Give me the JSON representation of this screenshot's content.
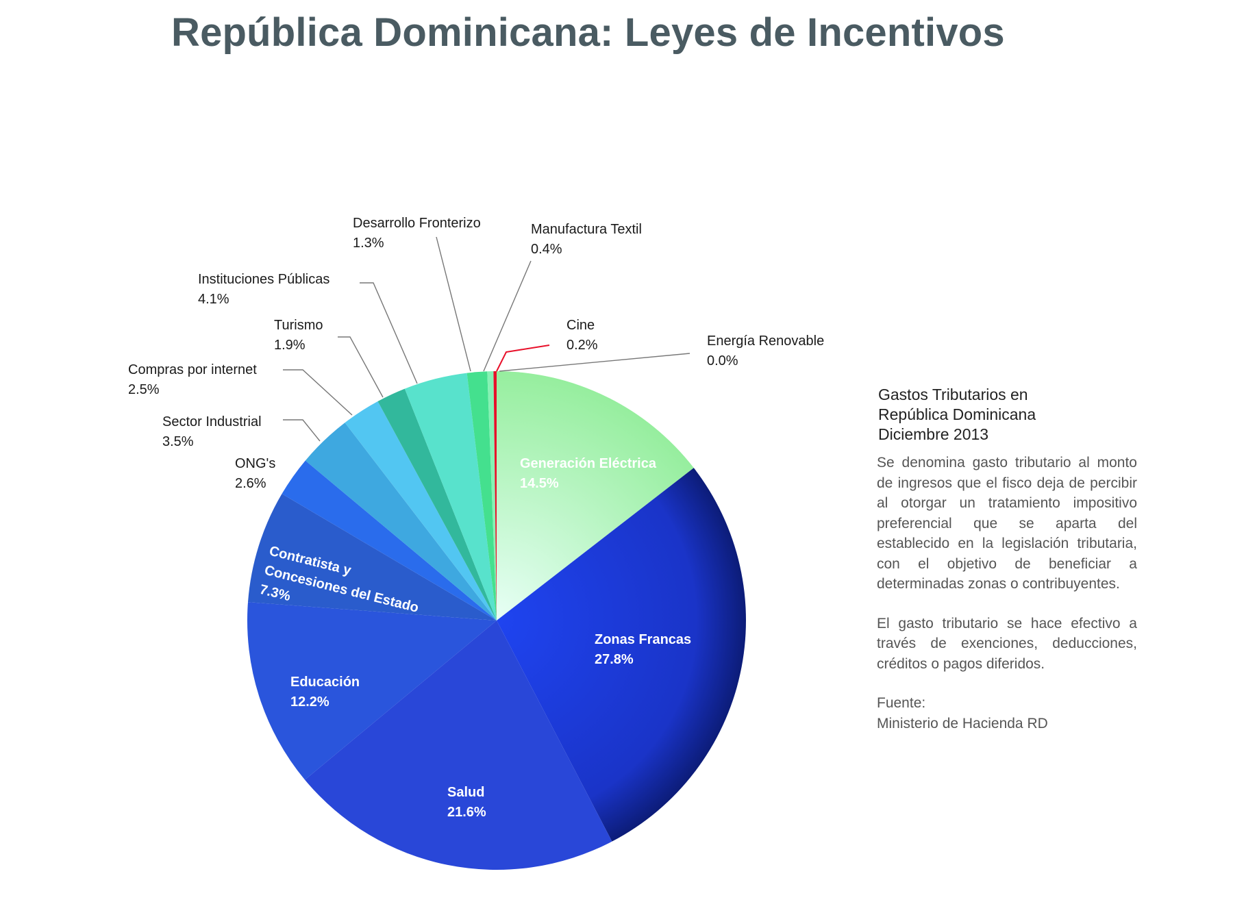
{
  "chart_data": {
    "type": "pie",
    "title": "República Dominicana: Leyes de Incentivos",
    "unit": "%",
    "slices": [
      {
        "name": "Energía Renovable",
        "value": 0.0,
        "label": "0.0%",
        "color": "#9ef0c0"
      },
      {
        "name": "Generación Eléctrica",
        "value": 14.5,
        "label": "14.5%",
        "color": "#a8f2b8"
      },
      {
        "name": "Zonas Francas",
        "value": 27.8,
        "label": "27.8%",
        "color": "#1c3ae6"
      },
      {
        "name": "Salud",
        "value": 21.6,
        "label": "21.6%",
        "color": "#2947d8"
      },
      {
        "name": "Educación",
        "value": 12.2,
        "label": "12.2%",
        "color": "#2a55dc"
      },
      {
        "name": "Contratista y Concesiones del Estado",
        "value": 7.3,
        "label": "7.3%",
        "color": "#2a5ccc"
      },
      {
        "name": "ONG's",
        "value": 2.6,
        "label": "2.6%",
        "color": "#2a6cec"
      },
      {
        "name": "Sector Industrial",
        "value": 3.5,
        "label": "3.5%",
        "color": "#3ea8e0"
      },
      {
        "name": "Compras por internet",
        "value": 2.5,
        "label": "2.5%",
        "color": "#52c6f2"
      },
      {
        "name": "Turismo",
        "value": 1.9,
        "label": "1.9%",
        "color": "#32b89c"
      },
      {
        "name": "Instituciones Públicas",
        "value": 4.1,
        "label": "4.1%",
        "color": "#58e2cc"
      },
      {
        "name": "Desarrollo Fronterizo",
        "value": 1.3,
        "label": "1.3%",
        "color": "#44e08e"
      },
      {
        "name": "Manufactura Textil",
        "value": 0.4,
        "label": "0.4%",
        "color": "#86f2b4"
      },
      {
        "name": "Cine",
        "value": 0.2,
        "label": "0.2%",
        "color": "#e8102a"
      }
    ],
    "start": "top",
    "direction": "clockwise",
    "legend": "none"
  },
  "panel": {
    "heading": [
      "Gastos Tributarios en",
      "República Dominicana",
      "Diciembre 2013"
    ],
    "paragraph1": "Se denomina gasto tributario al monto de ingresos que el fisco deja de percibir al otorgar un tratamiento impositivo preferencial que se aparta del establecido en la legislación tributaria, con el objetivo de beneficiar a determinadas zonas o contribuyentes.",
    "paragraph2": "El gasto tributario se hace efectivo a través de exenciones, deducciones, créditos o pagos diferidos.",
    "source_label": "Fuente:",
    "source": "Ministerio de Hacienda RD"
  }
}
